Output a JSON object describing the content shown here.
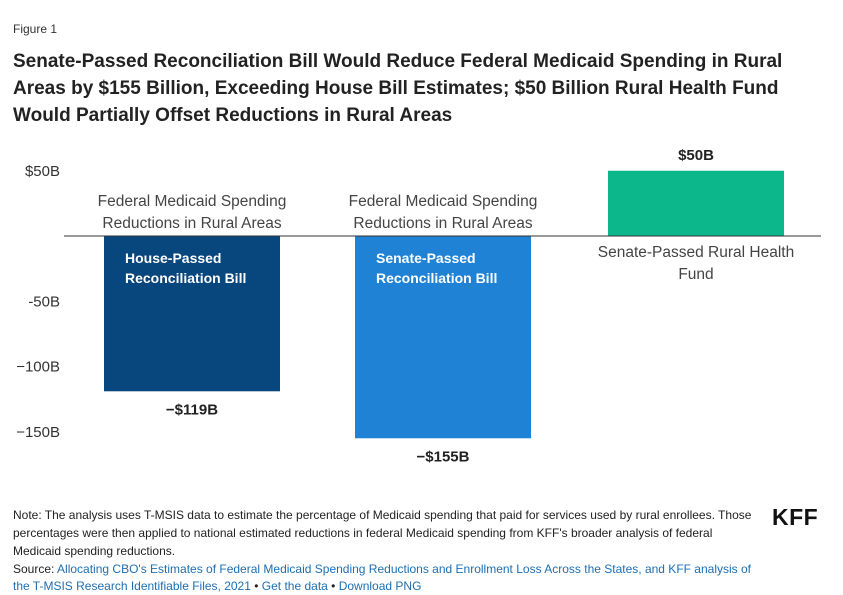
{
  "figure_label": "Figure 1",
  "title": "Senate-Passed Reconciliation Bill Would Reduce Federal Medicaid Spending in Rural Areas by $155 Billion, Exceeding House Bill Estimates; $50 Billion Rural Health Fund Would Partially Offset Reductions in Rural Areas",
  "chart_data": {
    "type": "bar",
    "title": "Senate-Passed Reconciliation Bill Would Reduce Federal Medicaid Spending in Rural Areas by $155 Billion, Exceeding House Bill Estimates; $50 Billion Rural Health Fund Would Partially Offset Reductions in Rural Areas",
    "xlabel": "",
    "ylabel": "",
    "ylim": [
      -160,
      55
    ],
    "yticks": [
      50,
      -50,
      -100,
      -150
    ],
    "ytick_labels": [
      "$50B",
      "-50B",
      "−100B",
      "−150B"
    ],
    "grid": false,
    "legend": "none",
    "categories": [
      "Federal Medicaid Spending Reductions in Rural Areas",
      "Federal Medicaid Spending Reductions in Rural Areas",
      "Senate-Passed Rural Health Fund"
    ],
    "category_lines": [
      [
        "Federal Medicaid Spending",
        "Reductions in Rural Areas"
      ],
      [
        "Federal Medicaid Spending",
        "Reductions in Rural Areas"
      ],
      [
        "Senate-Passed Rural Health",
        "Fund"
      ]
    ],
    "values": [
      -119,
      -155,
      50
    ],
    "value_labels": [
      "−$119B",
      "−$155B",
      "$50B"
    ],
    "bar_label_lines": [
      [
        "House-Passed",
        "Reconciliation Bill"
      ],
      [
        "Senate-Passed",
        "Reconciliation Bill"
      ],
      []
    ],
    "colors": [
      "#08467e",
      "#1f82d4",
      "#0bb78b"
    ]
  },
  "note": "Note: The analysis uses T-MSIS data to estimate the percentage of Medicaid spending that paid for services used by rural enrollees. Those percentages were then applied to national estimated reductions in federal Medicaid spending from KFF's broader analysis of federal Medicaid spending reductions.",
  "source": {
    "prefix": "Source: ",
    "link_text": "Allocating CBO's Estimates of Federal Medicaid Spending Reductions and Enrollment Loss Across the States, and KFF analysis of the T-MSIS Research Identifiable Files, 2021",
    "separator": " • ",
    "get_data": "Get the data",
    "download": "Download PNG"
  },
  "logo": "KFF"
}
